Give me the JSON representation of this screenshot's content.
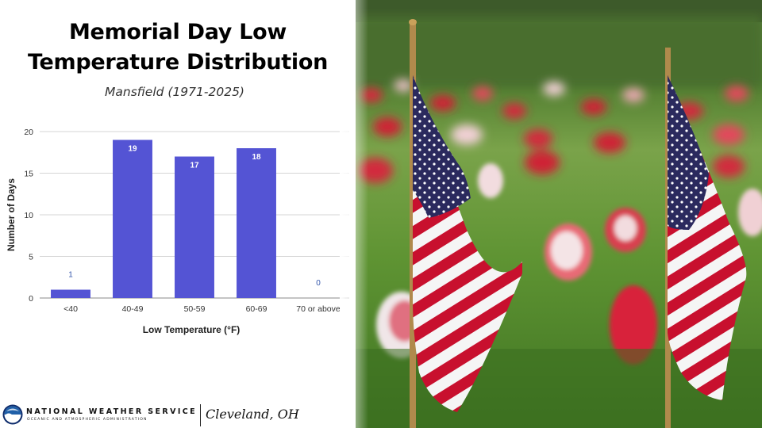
{
  "title_lines": [
    "Memorial Day Low",
    "Temperature Distribution"
  ],
  "subtitle": "Mansfield (1971-2025)",
  "chart_data": {
    "type": "bar",
    "categories": [
      "<40",
      "40-49",
      "50-59",
      "60-69",
      "70 or above"
    ],
    "values": [
      1,
      19,
      17,
      18,
      0
    ],
    "data_labels": [
      "1",
      "19",
      "17",
      "18",
      "0"
    ],
    "xlabel": "Low Temperature (°F)",
    "ylabel": "Number of Days",
    "ylim": [
      0,
      20
    ],
    "yticks": [
      0,
      5,
      10,
      15,
      20
    ],
    "grid": true,
    "bar_color": "#5454d4",
    "zero_value_label_color": "#3355aa",
    "data_label_color": "#ffffff"
  },
  "footer": {
    "agency": "NATIONAL WEATHER SERVICE",
    "subagency": "OCEANIC AND ATMOSPHERIC ADMINISTRATION",
    "office": "Cleveland, OH"
  },
  "colors": {
    "noaa_blue": "#1f5fa8",
    "noaa_navy": "#0d2b6b",
    "grass": "#4c8a2c",
    "flag_red": "#c8102e",
    "flag_blue": "#2b2a5e"
  },
  "photo": {
    "subject": "american-flags-with-red-white-flowers-in-grass"
  }
}
